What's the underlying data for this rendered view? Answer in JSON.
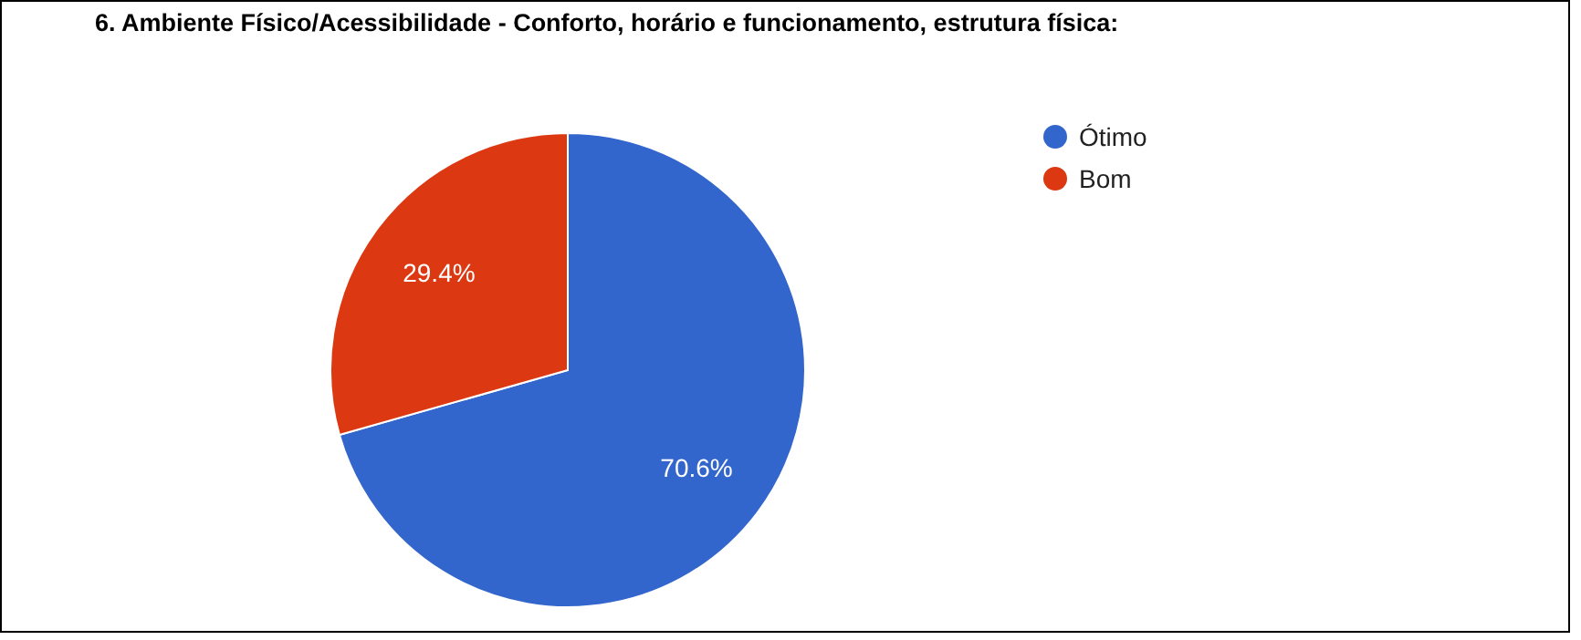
{
  "chart_data": {
    "type": "pie",
    "title": "6. Ambiente Físico/Acessibilidade - Conforto, horário e funcionamento, estrutura física:",
    "categories": [
      "Ótimo",
      "Bom"
    ],
    "values": [
      70.6,
      29.4
    ],
    "colors": [
      "#3366cc",
      "#dc3912"
    ],
    "value_labels": [
      "70.6%",
      "29.4%"
    ],
    "legend": "top right"
  }
}
